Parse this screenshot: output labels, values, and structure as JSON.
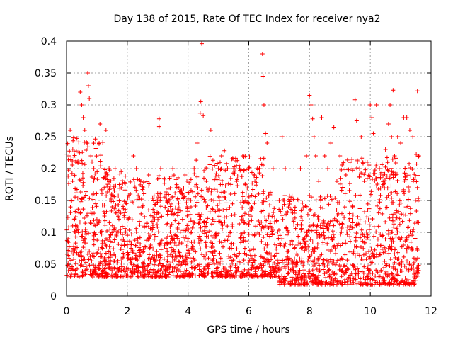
{
  "chart_data": {
    "type": "scatter",
    "title": "Day 138 of 2015, Rate Of TEC Index for receiver nya2",
    "xlabel": "GPS time / hours",
    "ylabel": "ROTI / TECUs",
    "xlim": [
      0,
      12
    ],
    "ylim": [
      0,
      0.4
    ],
    "xticks": [
      0,
      2,
      4,
      6,
      8,
      10,
      12
    ],
    "yticks": [
      0,
      0.05,
      0.1,
      0.15,
      0.2,
      0.25,
      0.3,
      0.35,
      0.4
    ],
    "ytick_labels": [
      "0",
      "0.05",
      "0.1",
      "0.15",
      "0.2",
      "0.25",
      "0.3",
      "0.35",
      "0.4"
    ],
    "grid": true,
    "marker": "+",
    "color": "#ff0000",
    "series": [
      {
        "name": "ROTI",
        "x_range": [
          0,
          11.6
        ],
        "points": [
          [
            0.05,
            0.09
          ],
          [
            0.08,
            0.22
          ],
          [
            0.12,
            0.26
          ],
          [
            0.15,
            0.15
          ],
          [
            0.2,
            0.18
          ],
          [
            0.25,
            0.12
          ],
          [
            0.3,
            0.21
          ],
          [
            0.35,
            0.11
          ],
          [
            0.45,
            0.32
          ],
          [
            0.5,
            0.3
          ],
          [
            0.55,
            0.28
          ],
          [
            0.6,
            0.26
          ],
          [
            0.7,
            0.35
          ],
          [
            0.72,
            0.33
          ],
          [
            0.75,
            0.31
          ],
          [
            0.8,
            0.22
          ],
          [
            0.9,
            0.2
          ],
          [
            1.0,
            0.12
          ],
          [
            1.1,
            0.27
          ],
          [
            1.2,
            0.2
          ],
          [
            1.3,
            0.26
          ],
          [
            1.4,
            0.2
          ],
          [
            1.5,
            0.14
          ],
          [
            1.6,
            0.2
          ],
          [
            1.7,
            0.1
          ],
          [
            1.8,
            0.17
          ],
          [
            1.9,
            0.08
          ],
          [
            2.1,
            0.16
          ],
          [
            2.2,
            0.22
          ],
          [
            2.3,
            0.2
          ],
          [
            2.5,
            0.14
          ],
          [
            2.7,
            0.19
          ],
          [
            2.9,
            0.12
          ],
          [
            3.05,
            0.278
          ],
          [
            3.05,
            0.266
          ],
          [
            3.1,
            0.2
          ],
          [
            3.3,
            0.15
          ],
          [
            3.5,
            0.2
          ],
          [
            3.7,
            0.17
          ],
          [
            3.9,
            0.19
          ],
          [
            4.1,
            0.14
          ],
          [
            4.2,
            0.2
          ],
          [
            4.3,
            0.24
          ],
          [
            4.4,
            0.287
          ],
          [
            4.42,
            0.305
          ],
          [
            4.45,
            0.396
          ],
          [
            4.5,
            0.283
          ],
          [
            4.6,
            0.18
          ],
          [
            4.75,
            0.26
          ],
          [
            4.85,
            0.15
          ],
          [
            5.0,
            0.2
          ],
          [
            5.1,
            0.22
          ],
          [
            5.2,
            0.228
          ],
          [
            5.3,
            0.2
          ],
          [
            5.4,
            0.16
          ],
          [
            5.5,
            0.2
          ],
          [
            5.6,
            0.18
          ],
          [
            5.7,
            0.2
          ],
          [
            5.8,
            0.22
          ],
          [
            5.9,
            0.15
          ],
          [
            6.0,
            0.2
          ],
          [
            6.2,
            0.18
          ],
          [
            6.35,
            0.2
          ],
          [
            6.45,
            0.38
          ],
          [
            6.47,
            0.345
          ],
          [
            6.5,
            0.3
          ],
          [
            6.55,
            0.255
          ],
          [
            6.6,
            0.24
          ],
          [
            6.8,
            0.2
          ],
          [
            7.0,
            0.15
          ],
          [
            7.1,
            0.25
          ],
          [
            7.2,
            0.2
          ],
          [
            7.3,
            0.1
          ],
          [
            7.5,
            0.13
          ],
          [
            7.7,
            0.2
          ],
          [
            7.9,
            0.22
          ],
          [
            8.0,
            0.315
          ],
          [
            8.05,
            0.3
          ],
          [
            8.1,
            0.278
          ],
          [
            8.15,
            0.25
          ],
          [
            8.2,
            0.22
          ],
          [
            8.3,
            0.18
          ],
          [
            8.4,
            0.28
          ],
          [
            8.5,
            0.22
          ],
          [
            8.6,
            0.2
          ],
          [
            8.7,
            0.24
          ],
          [
            8.8,
            0.265
          ],
          [
            8.9,
            0.18
          ],
          [
            9.0,
            0.22
          ],
          [
            9.2,
            0.19
          ],
          [
            9.4,
            0.2
          ],
          [
            9.5,
            0.308
          ],
          [
            9.55,
            0.275
          ],
          [
            9.7,
            0.25
          ],
          [
            9.8,
            0.18
          ],
          [
            9.9,
            0.21
          ],
          [
            10.0,
            0.3
          ],
          [
            10.05,
            0.28
          ],
          [
            10.1,
            0.255
          ],
          [
            10.2,
            0.3
          ],
          [
            10.3,
            0.2
          ],
          [
            10.5,
            0.23
          ],
          [
            10.6,
            0.27
          ],
          [
            10.65,
            0.3
          ],
          [
            10.7,
            0.25
          ],
          [
            10.75,
            0.323
          ],
          [
            10.8,
            0.22
          ],
          [
            10.9,
            0.25
          ],
          [
            11.0,
            0.24
          ],
          [
            11.1,
            0.28
          ],
          [
            11.2,
            0.28
          ],
          [
            11.3,
            0.26
          ],
          [
            11.4,
            0.25
          ],
          [
            11.55,
            0.322
          ],
          [
            11.6,
            0.22
          ]
        ]
      }
    ]
  }
}
